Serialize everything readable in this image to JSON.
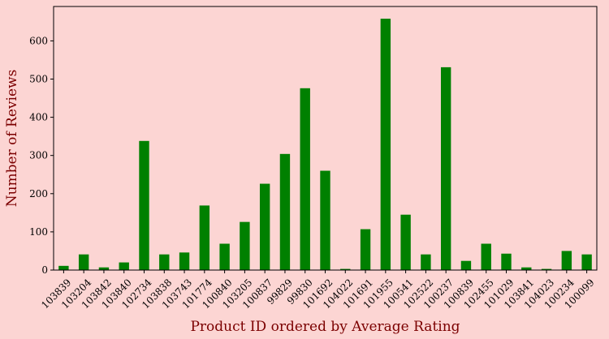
{
  "colors": {
    "figure_background": "#fcd5d3",
    "plot_background": "#fcd5d3",
    "bar": "#008000",
    "axis_label": "#7b0000",
    "axes_edge": "#000000"
  },
  "chart_data": {
    "type": "bar",
    "xlabel": "Product ID ordered by Average Rating",
    "ylabel": "Number of Reviews",
    "ylim": [
      0,
      690
    ],
    "yticks": [
      0,
      100,
      200,
      300,
      400,
      500,
      600
    ],
    "grid": false,
    "categories": [
      "103839",
      "103204",
      "103842",
      "103840",
      "102734",
      "103838",
      "103743",
      "101774",
      "100840",
      "103205",
      "100837",
      "99829",
      "99830",
      "101692",
      "104022",
      "101691",
      "101955",
      "100541",
      "102522",
      "100237",
      "100839",
      "102455",
      "101029",
      "103841",
      "104023",
      "100234",
      "100099"
    ],
    "values": [
      11,
      41,
      7,
      20,
      338,
      41,
      46,
      169,
      69,
      126,
      226,
      304,
      476,
      260,
      3,
      107,
      658,
      145,
      41,
      531,
      24,
      69,
      43,
      7,
      3,
      50,
      41
    ]
  }
}
